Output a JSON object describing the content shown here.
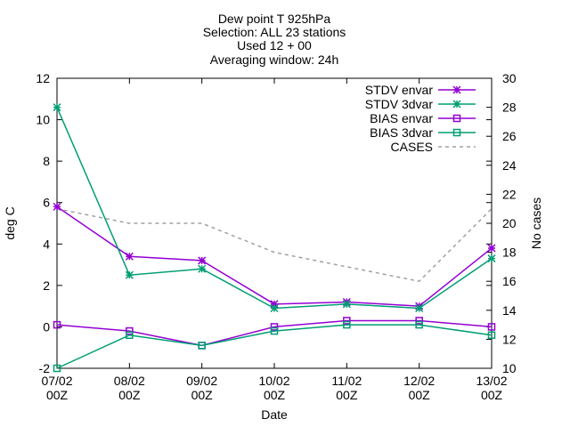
{
  "chart_data": {
    "type": "line",
    "title_lines": [
      "Dew point T 925hPa",
      "Selection: ALL      23 stations",
      "Used 12 + 00",
      "Averaging window: 24h"
    ],
    "xlabel": "Date",
    "ylabel": "deg C",
    "y2label": "No cases",
    "categories": [
      [
        "07/02",
        "00Z"
      ],
      [
        "08/02",
        "00Z"
      ],
      [
        "09/02",
        "00Z"
      ],
      [
        "10/02",
        "00Z"
      ],
      [
        "11/02",
        "00Z"
      ],
      [
        "12/02",
        "00Z"
      ],
      [
        "13/02",
        "00Z"
      ]
    ],
    "ylim": [
      -2,
      12
    ],
    "yticks": [
      "-2",
      "0",
      "2",
      "4",
      "6",
      "8",
      "10",
      "12"
    ],
    "y2lim": [
      10,
      30
    ],
    "y2ticks": [
      "10",
      "12",
      "14",
      "16",
      "18",
      "20",
      "22",
      "24",
      "26",
      "28",
      "30"
    ],
    "grid": false,
    "legend_position": "top-right",
    "series": [
      {
        "name": "STDV envar",
        "axis": "y",
        "color": "#9400d3",
        "marker": "star",
        "values": [
          5.8,
          3.4,
          3.2,
          1.1,
          1.2,
          1.0,
          3.8
        ]
      },
      {
        "name": "STDV 3dvar",
        "axis": "y",
        "color": "#009e73",
        "marker": "star",
        "values": [
          10.6,
          2.5,
          2.8,
          0.9,
          1.1,
          0.9,
          3.3
        ]
      },
      {
        "name": "BIAS envar",
        "axis": "y",
        "color": "#9400d3",
        "marker": "square",
        "values": [
          0.1,
          -0.2,
          -0.9,
          0.0,
          0.3,
          0.3,
          0.0
        ]
      },
      {
        "name": "BIAS 3dvar",
        "axis": "y",
        "color": "#009e73",
        "marker": "square",
        "values": [
          -2.0,
          -0.4,
          -0.9,
          -0.2,
          0.1,
          0.1,
          -0.4
        ]
      },
      {
        "name": "CASES",
        "axis": "y2",
        "color": "#a0a0a0",
        "marker": "none",
        "dashed": true,
        "values": [
          21,
          20,
          20,
          18,
          17,
          16,
          21
        ]
      }
    ]
  }
}
